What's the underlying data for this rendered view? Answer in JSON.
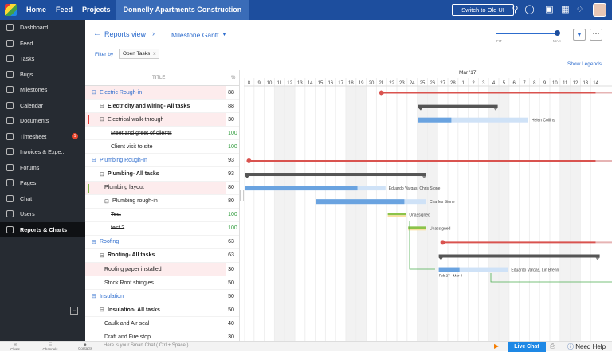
{
  "topbar": {
    "nav": [
      "Home",
      "Feed",
      "Projects"
    ],
    "project": "Donnelly Apartments Construction",
    "switch_label": "Switch to Old UI",
    "icons": [
      "search-icon",
      "gamepad-icon",
      "settings-icon",
      "calendar-icon",
      "bell-icon",
      "gear-icon"
    ]
  },
  "sidebar": {
    "items": [
      {
        "label": "Dashboard",
        "icon": "dashboard-icon"
      },
      {
        "label": "Feed",
        "icon": "feed-icon"
      },
      {
        "label": "Tasks",
        "icon": "tasks-icon"
      },
      {
        "label": "Bugs",
        "icon": "bug-icon"
      },
      {
        "label": "Milestones",
        "icon": "milestone-icon"
      },
      {
        "label": "Calendar",
        "icon": "calendar-icon"
      },
      {
        "label": "Documents",
        "icon": "document-icon"
      },
      {
        "label": "Timesheet",
        "icon": "clock-icon",
        "badge": "1"
      },
      {
        "label": "Invoices & Expe...",
        "icon": "invoice-icon"
      },
      {
        "label": "Forums",
        "icon": "forum-icon"
      },
      {
        "label": "Pages",
        "icon": "page-icon"
      },
      {
        "label": "Chat",
        "icon": "chat-icon"
      },
      {
        "label": "Users",
        "icon": "users-icon"
      },
      {
        "label": "Reports & Charts",
        "icon": "reports-icon",
        "active": true
      }
    ]
  },
  "header": {
    "reports_view": "Reports view",
    "view_name": "Milestone Gantt",
    "filter_by": "Filter by",
    "filter_chip": "Open Tasks",
    "zoom_fit": "FIT",
    "zoom_max": "MAX",
    "show_legends": "Show Legends"
  },
  "table": {
    "title_header": "TITLE",
    "pct_header": "%",
    "rows": [
      {
        "title": "Electric Rough-in",
        "pct": "88",
        "kind": "group",
        "hl": true
      },
      {
        "title": "Electricity and wiring- All tasks",
        "pct": "88",
        "kind": "list"
      },
      {
        "title": "Electrical walk-through",
        "pct": "30",
        "kind": "task",
        "hl": true,
        "mark": "red"
      },
      {
        "title": "Meet and greet of clients",
        "pct": "100",
        "kind": "done"
      },
      {
        "title": "Client visit to site",
        "pct": "100",
        "kind": "done"
      },
      {
        "title": "Plumbing Rough-In",
        "pct": "93",
        "kind": "group"
      },
      {
        "title": "Plumbing- All tasks",
        "pct": "93",
        "kind": "list"
      },
      {
        "title": "Plumbing layout",
        "pct": "80",
        "kind": "leaf",
        "hl": true,
        "mark": "green"
      },
      {
        "title": "Plumbing rough-in",
        "pct": "80",
        "kind": "sub"
      },
      {
        "title": "Test",
        "pct": "100",
        "kind": "done"
      },
      {
        "title": "test 2",
        "pct": "100",
        "kind": "done"
      },
      {
        "title": "Roofing",
        "pct": "63",
        "kind": "group"
      },
      {
        "title": "Roofing- All tasks",
        "pct": "63",
        "kind": "list"
      },
      {
        "title": "Roofing paper installed",
        "pct": "30",
        "kind": "leaf",
        "hl": true
      },
      {
        "title": "Stock Roof shingles",
        "pct": "50",
        "kind": "leaf"
      },
      {
        "title": "Insulation",
        "pct": "50",
        "kind": "group"
      },
      {
        "title": "Insulation- All tasks",
        "pct": "50",
        "kind": "list"
      },
      {
        "title": "Caulk and Air seal",
        "pct": "40",
        "kind": "leaf"
      },
      {
        "title": "Draft and Fire stop",
        "pct": "30",
        "kind": "leaf"
      }
    ]
  },
  "gantt": {
    "month": "Mar '17",
    "days": [
      "8",
      "9",
      "10",
      "11",
      "12",
      "13",
      "14",
      "15",
      "16",
      "17",
      "18",
      "19",
      "20",
      "21",
      "22",
      "23",
      "24",
      "25",
      "26",
      "27",
      "28",
      "1",
      "2",
      "3",
      "4",
      "5",
      "6",
      "7",
      "8",
      "9",
      "10",
      "11",
      "12",
      "13",
      "14"
    ],
    "weekend_days": [
      "11",
      "12",
      "18",
      "19",
      "25",
      "26",
      "4",
      "5",
      "11",
      "12"
    ],
    "bars": [
      {
        "row": 0,
        "type": "milestone",
        "start": "21",
        "end": "14",
        "color": "#d9534f"
      },
      {
        "row": 1,
        "type": "summary",
        "start": "25",
        "end": "4"
      },
      {
        "row": 2,
        "type": "task",
        "start": "25",
        "end": "7",
        "progress": 0.3,
        "label": "Helen Collins"
      },
      {
        "row": 5,
        "type": "milestone",
        "start": "8",
        "end": "14",
        "color": "#d9534f"
      },
      {
        "row": 6,
        "type": "summary",
        "start": "8",
        "end": "25"
      },
      {
        "row": 7,
        "type": "task",
        "start": "8",
        "end": "21",
        "progress": 0.8,
        "label": "Eduardo Vargas, Chris Stone"
      },
      {
        "row": 8,
        "type": "task",
        "start": "15",
        "end": "25",
        "progress": 0.8,
        "label": "Charles Stone"
      },
      {
        "row": 9,
        "type": "done",
        "start": "22",
        "end": "23",
        "label": "Unassigned"
      },
      {
        "row": 10,
        "type": "done",
        "start": "24",
        "end": "25",
        "label": "Unassigned"
      },
      {
        "row": 11,
        "type": "milestone",
        "start": "27",
        "end": "14",
        "color": "#d9534f"
      },
      {
        "row": 12,
        "type": "summary",
        "start": "27",
        "end": "14"
      },
      {
        "row": 13,
        "type": "task",
        "start": "27",
        "end": "5",
        "progress": 0.3,
        "label": "Eduardo Vargas, Lin Brenn",
        "date_label": "Feb 27 - Mar 4"
      }
    ]
  },
  "bottombar": {
    "icons": [
      {
        "name": "chats-icon",
        "label": "Chats"
      },
      {
        "name": "channels-icon",
        "label": "Channels"
      },
      {
        "name": "contacts-icon",
        "label": "Contacts"
      }
    ],
    "smart_chat": "Here is your Smart Chat ( Ctrl + Space )",
    "live_chat": "Live Chat",
    "need_help": "Need Help"
  }
}
